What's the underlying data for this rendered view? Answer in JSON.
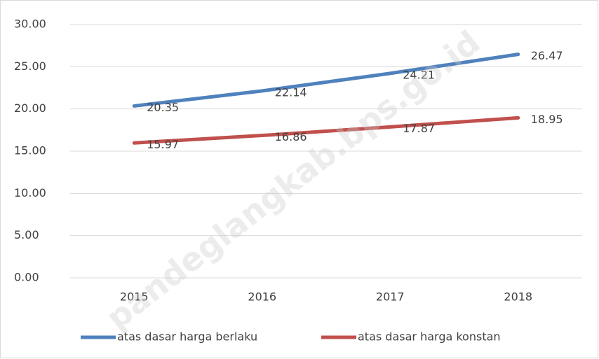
{
  "chart_data": {
    "type": "line",
    "categories": [
      "2015",
      "2016",
      "2017",
      "2018"
    ],
    "series": [
      {
        "name": "atas dasar harga berlaku",
        "color": "#4f81bd",
        "values": [
          20.35,
          22.14,
          24.21,
          26.47
        ]
      },
      {
        "name": "atas dasar harga konstan",
        "color": "#c0504d",
        "values": [
          15.97,
          16.86,
          17.87,
          18.95
        ]
      }
    ],
    "ylim": [
      0,
      30
    ],
    "yticks": [
      {
        "value": 0,
        "label": "0.00"
      },
      {
        "value": 5,
        "label": "5.00"
      },
      {
        "value": 10,
        "label": "10.00"
      },
      {
        "value": 15,
        "label": "15.00"
      },
      {
        "value": 20,
        "label": "20.00"
      },
      {
        "value": 25,
        "label": "25.00"
      },
      {
        "value": 30,
        "label": "30.00"
      }
    ],
    "grid": true,
    "legend": "bottom",
    "watermark": "pandeglangkab.bps.go.id"
  }
}
